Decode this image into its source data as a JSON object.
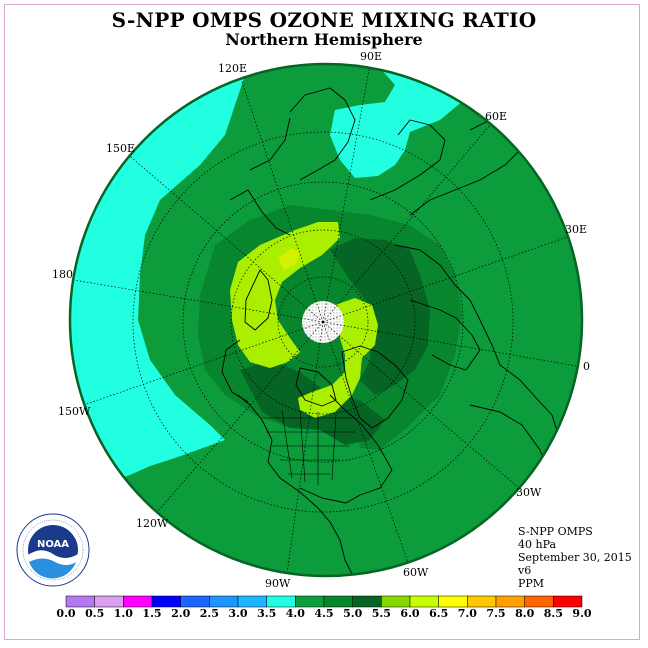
{
  "header": {
    "title": "S-NPP OMPS OZONE MIXING RATIO",
    "subtitle": "Northern Hemisphere"
  },
  "map": {
    "longitude_labels": [
      "90E",
      "60E",
      "30E",
      "0",
      "30W",
      "60W",
      "90W",
      "120W",
      "150W",
      "180",
      "150E",
      "120E"
    ]
  },
  "info": {
    "instrument": "S-NPP OMPS",
    "level": "40 hPa",
    "date": "September 30, 2015",
    "version": "v6",
    "units": "PPM"
  },
  "logo": {
    "text": "NOAA",
    "ring_text": "NATIONAL OCEANIC AND ATMOSPHERIC ADMINISTRATION · U.S. DEPARTMENT OF COMMERCE"
  },
  "colorbar": {
    "labels": [
      "0.0",
      "0.5",
      "1.0",
      "1.5",
      "2.0",
      "2.5",
      "3.0",
      "3.5",
      "4.0",
      "4.5",
      "5.0",
      "5.5",
      "6.0",
      "6.5",
      "7.0",
      "7.5",
      "8.0",
      "8.5",
      "9.0"
    ],
    "colors": [
      "#b479f0",
      "#d9a0f0",
      "#ff00ff",
      "#0000ff",
      "#1e64ff",
      "#1e96ff",
      "#1eb4ff",
      "#22ffe0",
      "#0c9c3c",
      "#08862e",
      "#066424",
      "#88d800",
      "#c8ff00",
      "#ffff00",
      "#ffc800",
      "#ffa000",
      "#ff6400",
      "#ff0000",
      "#7d4a26"
    ]
  },
  "colors": {
    "cyan": "#22ffe0",
    "green_mid": "#0c9c3c",
    "green_dark": "#08862e",
    "green_darkest": "#066424",
    "lime": "#aaee00",
    "yellow_lime": "#d4f200",
    "polar_white": "#ffffff"
  }
}
